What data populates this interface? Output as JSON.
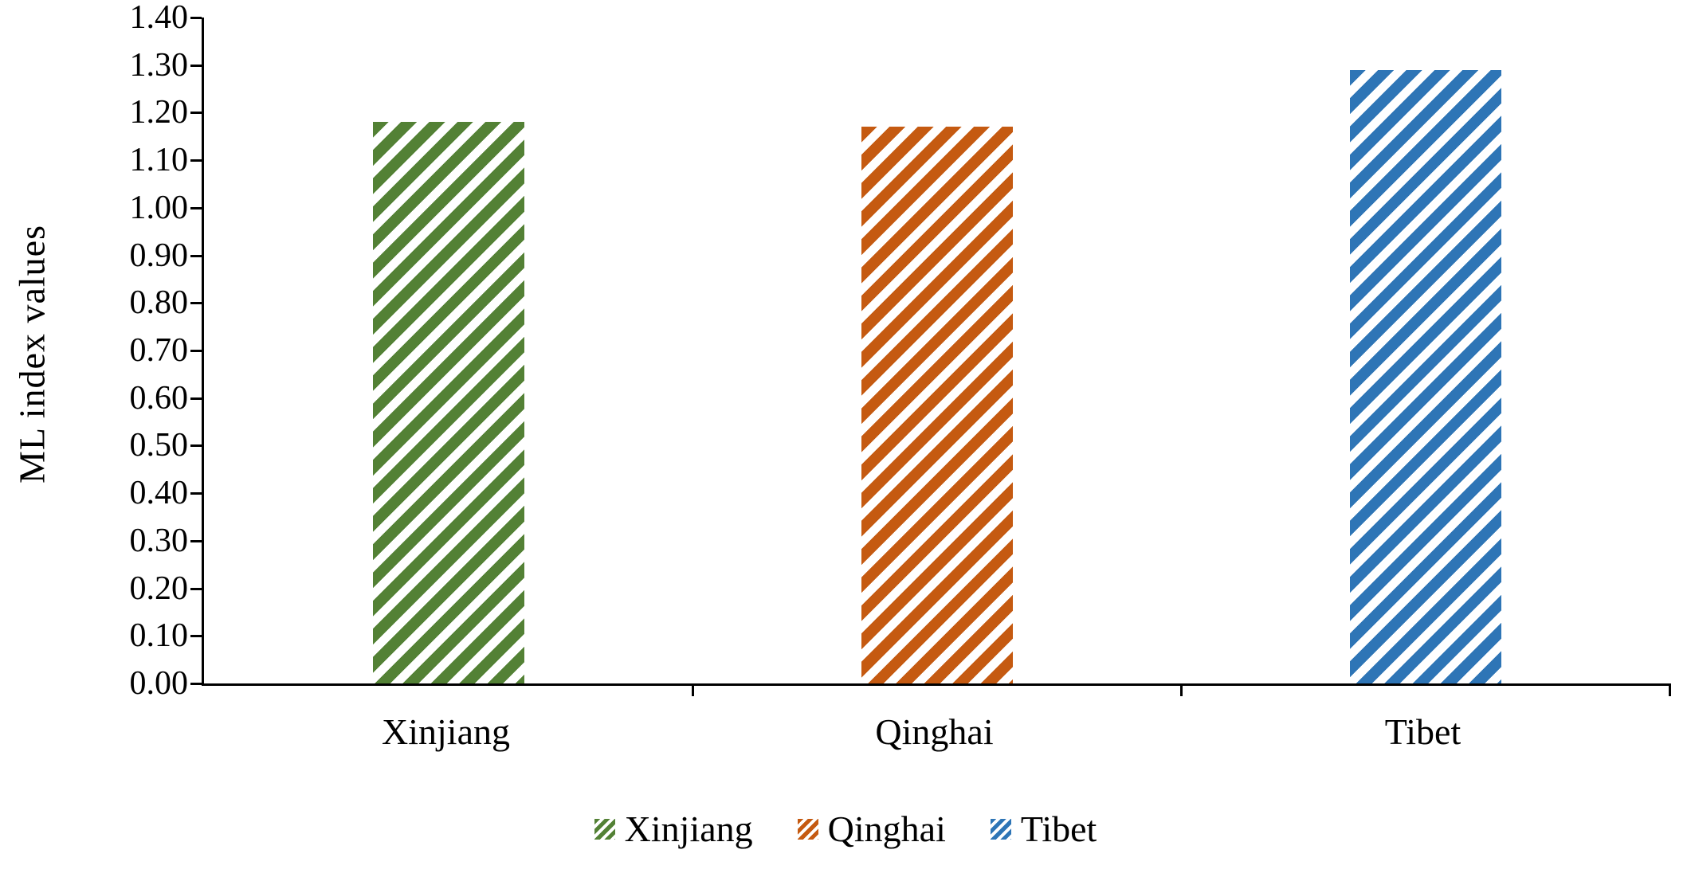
{
  "chart_data": {
    "type": "bar",
    "title": "",
    "xlabel": "",
    "ylabel": "ML index values",
    "categories": [
      "Xinjiang",
      "Qinghai",
      "Tibet"
    ],
    "values": [
      1.18,
      1.17,
      1.29
    ],
    "ylim": [
      0.0,
      1.4
    ],
    "ytick_step": 0.1,
    "ytick_labels": [
      "1.40",
      "1.30",
      "1.20",
      "1.10",
      "1.00",
      "0.90",
      "0.80",
      "0.70",
      "0.60",
      "0.50",
      "0.40",
      "0.30",
      "0.20",
      "0.10",
      "0.00"
    ],
    "grid": false,
    "hatch": "diagonal-forward",
    "bar_colors": [
      "#538135",
      "#C55A11",
      "#2E75B6"
    ],
    "axis_color": "#000000",
    "legend": {
      "position": "bottom",
      "entries": [
        "Xinjiang",
        "Qinghai",
        "Tibet"
      ]
    }
  }
}
